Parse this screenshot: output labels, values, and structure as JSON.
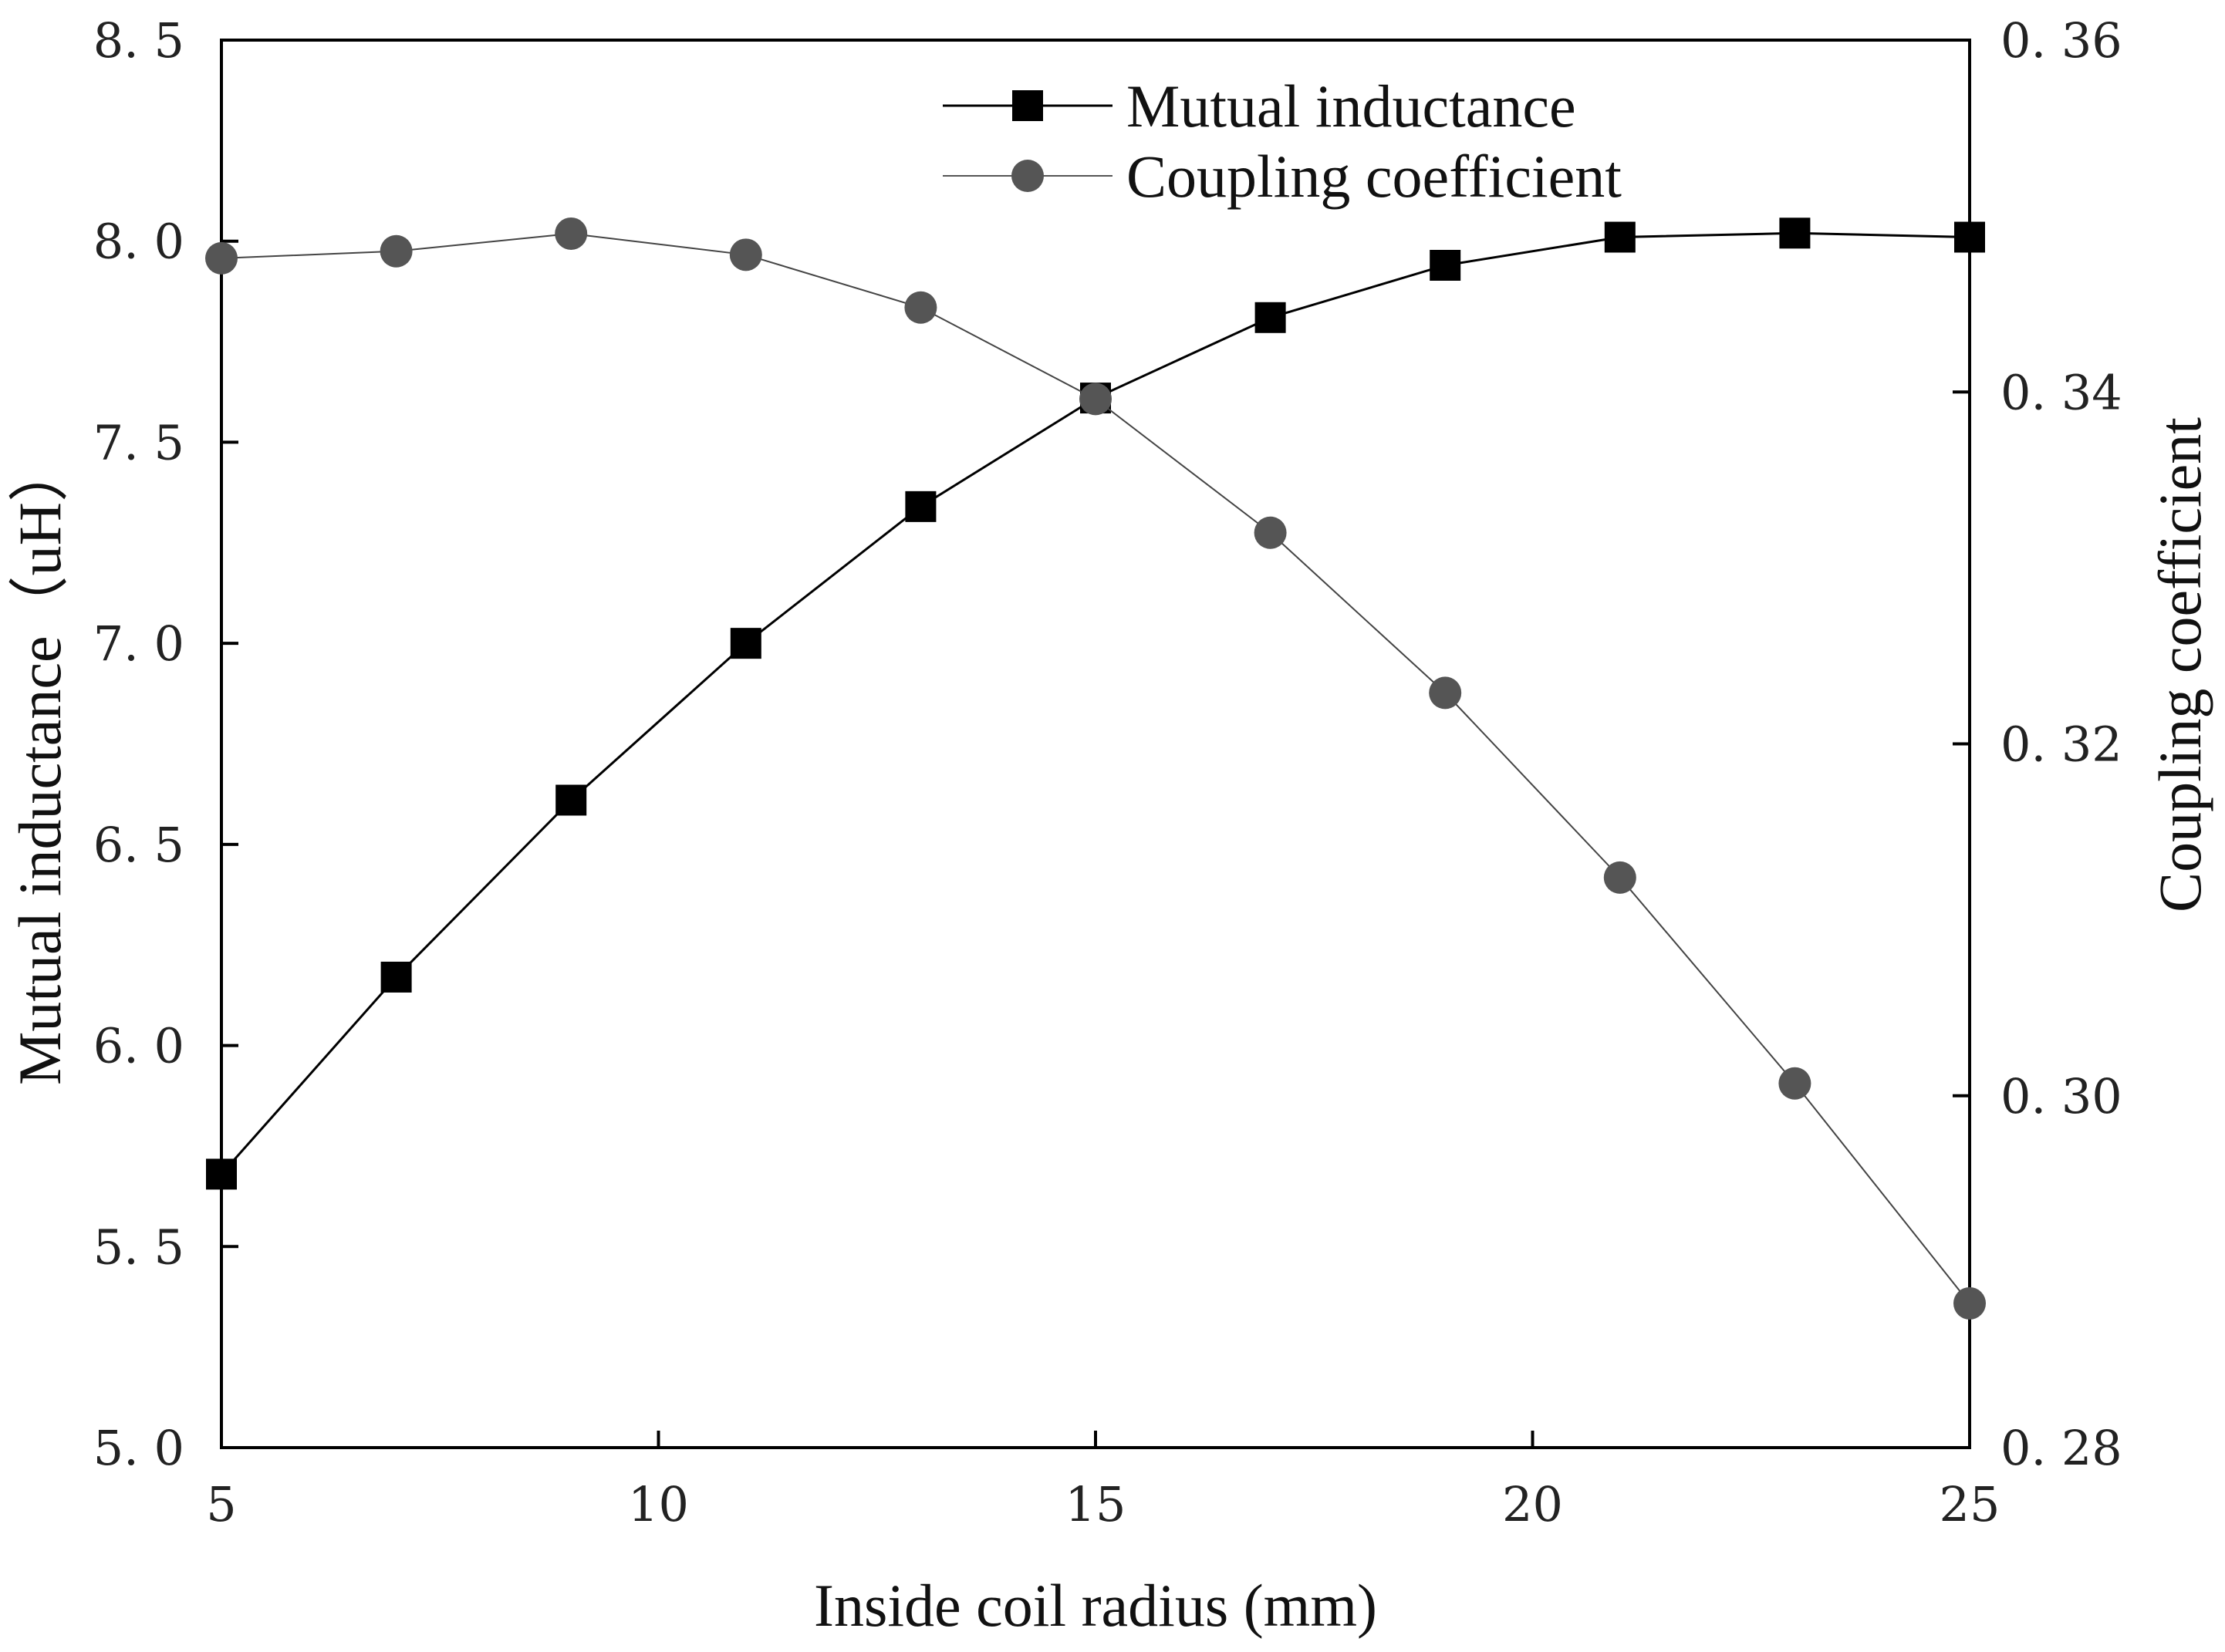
{
  "chart_data": {
    "type": "line",
    "title": "",
    "xlabel": "Inside coil radius (mm)",
    "ylabel_left": "Mutual inductance（uH）",
    "ylabel_right": "Coupling coefficient",
    "xlim": [
      5,
      25
    ],
    "ylim_left": [
      5.0,
      8.5
    ],
    "ylim_right": [
      0.28,
      0.36
    ],
    "x_ticks": [
      5,
      10,
      15,
      20,
      25
    ],
    "x_tick_labels": [
      "5",
      "10",
      "15",
      "20",
      "25"
    ],
    "y_left_ticks": [
      5.0,
      5.5,
      6.0,
      6.5,
      7.0,
      7.5,
      8.0,
      8.5
    ],
    "y_left_tick_labels": [
      "5. 0",
      "5. 5",
      "6. 0",
      "6. 5",
      "7. 0",
      "7. 5",
      "8. 0",
      "8. 5"
    ],
    "y_right_ticks": [
      0.28,
      0.3,
      0.32,
      0.34,
      0.36
    ],
    "y_right_tick_labels": [
      "0. 28",
      "0. 30",
      "0. 32",
      "0. 34",
      "0. 36"
    ],
    "x": [
      5,
      7,
      9,
      11,
      13,
      15,
      17,
      19,
      21,
      23,
      25
    ],
    "series": [
      {
        "name": "Mutual inductance",
        "axis": "left",
        "marker": "square",
        "color": "#000000",
        "values": [
          5.68,
          6.17,
          6.61,
          7.0,
          7.34,
          7.61,
          7.81,
          7.94,
          8.01,
          8.02,
          8.01
        ]
      },
      {
        "name": "Coupling coefficient",
        "axis": "right",
        "marker": "circle",
        "color": "#555555",
        "values": [
          0.3476,
          0.348,
          0.349,
          0.3478,
          0.3448,
          0.3396,
          0.332,
          0.3229,
          0.3124,
          0.3007,
          0.2882
        ]
      }
    ],
    "legend_position": "top-right",
    "grid": false
  }
}
